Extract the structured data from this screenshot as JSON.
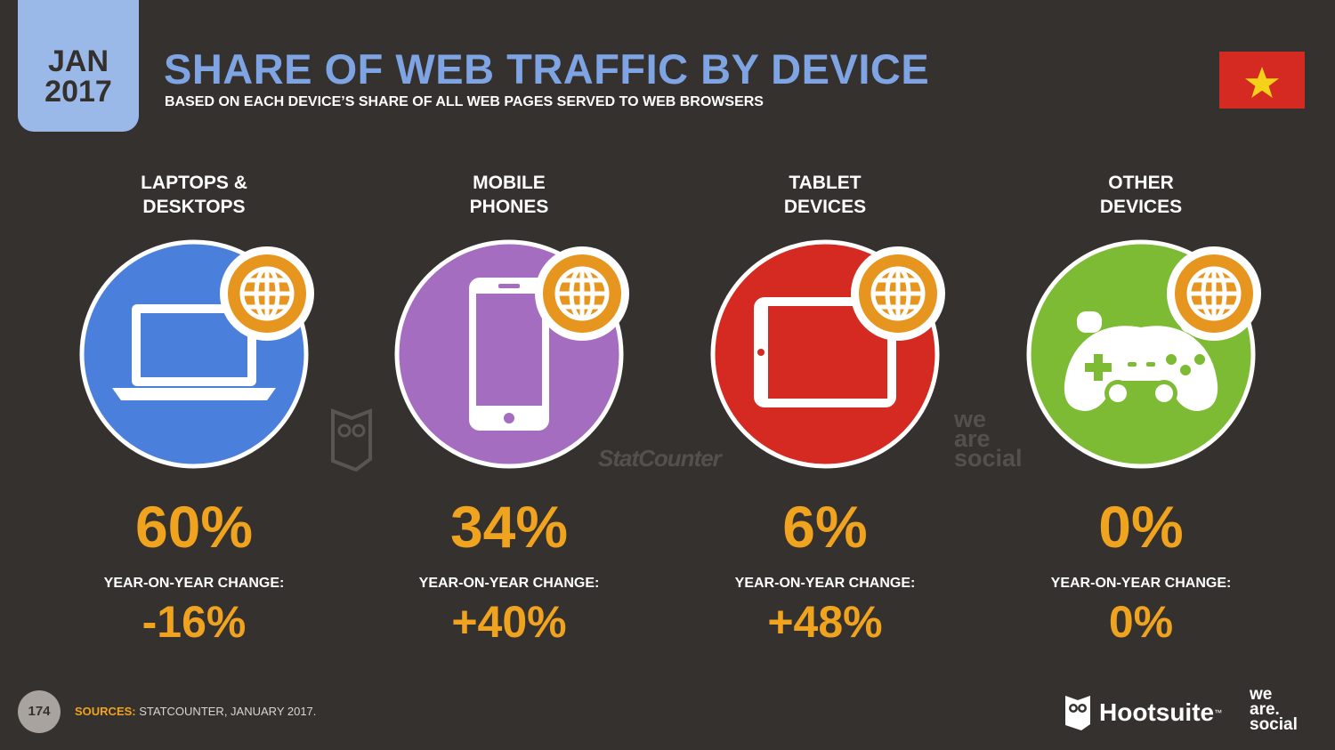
{
  "header": {
    "date_month": "JAN",
    "date_year": "2017",
    "title": "SHARE OF WEB TRAFFIC BY DEVICE",
    "subtitle": "BASED ON EACH DEVICE’S SHARE OF ALL WEB PAGES SERVED TO WEB BROWSERS",
    "flag_icon": "vietnam-flag-icon"
  },
  "colors": {
    "background": "#35312e",
    "title": "#7fa4e4",
    "accent": "#f0a31e",
    "laptops": "#4a7fdc",
    "mobile": "#a56dbf",
    "tablet": "#d52a22",
    "other": "#7dbb35"
  },
  "chart_data": {
    "type": "table",
    "categories": [
      "LAPTOPS & DESKTOPS",
      "MOBILE PHONES",
      "TABLET DEVICES",
      "OTHER DEVICES"
    ],
    "series": [
      {
        "name": "SHARE",
        "values": [
          60,
          34,
          6,
          0
        ]
      },
      {
        "name": "YEAR-ON-YEAR CHANGE",
        "values": [
          -16,
          40,
          48,
          0
        ]
      }
    ]
  },
  "devices": [
    {
      "label": "LAPTOPS &\nDESKTOPS",
      "share": "60%",
      "yoy_label": "YEAR-ON-YEAR CHANGE:",
      "yoy": "-16%",
      "icon": "laptop-icon",
      "color": "#4a7fdc"
    },
    {
      "label": "MOBILE\nPHONES",
      "share": "34%",
      "yoy_label": "YEAR-ON-YEAR CHANGE:",
      "yoy": "+40%",
      "icon": "smartphone-icon",
      "color": "#a56dbf"
    },
    {
      "label": "TABLET\nDEVICES",
      "share": "6%",
      "yoy_label": "YEAR-ON-YEAR CHANGE:",
      "yoy": "+48%",
      "icon": "tablet-icon",
      "color": "#d52a22"
    },
    {
      "label": "OTHER\nDEVICES",
      "share": "0%",
      "yoy_label": "YEAR-ON-YEAR CHANGE:",
      "yoy": "0%",
      "icon": "gamepad-icon",
      "color": "#7dbb35"
    }
  ],
  "watermarks": {
    "statcounter": "StatCounter",
    "we_are_social": "we\nare\nsocial"
  },
  "footer": {
    "page_number": "174",
    "sources_label": "SOURCES:",
    "sources_text": "STATCOUNTER, JANUARY 2017.",
    "hootsuite": "Hootsuite",
    "hootsuite_tm": "™",
    "we_are_social": "we\nare.\nsocial"
  }
}
